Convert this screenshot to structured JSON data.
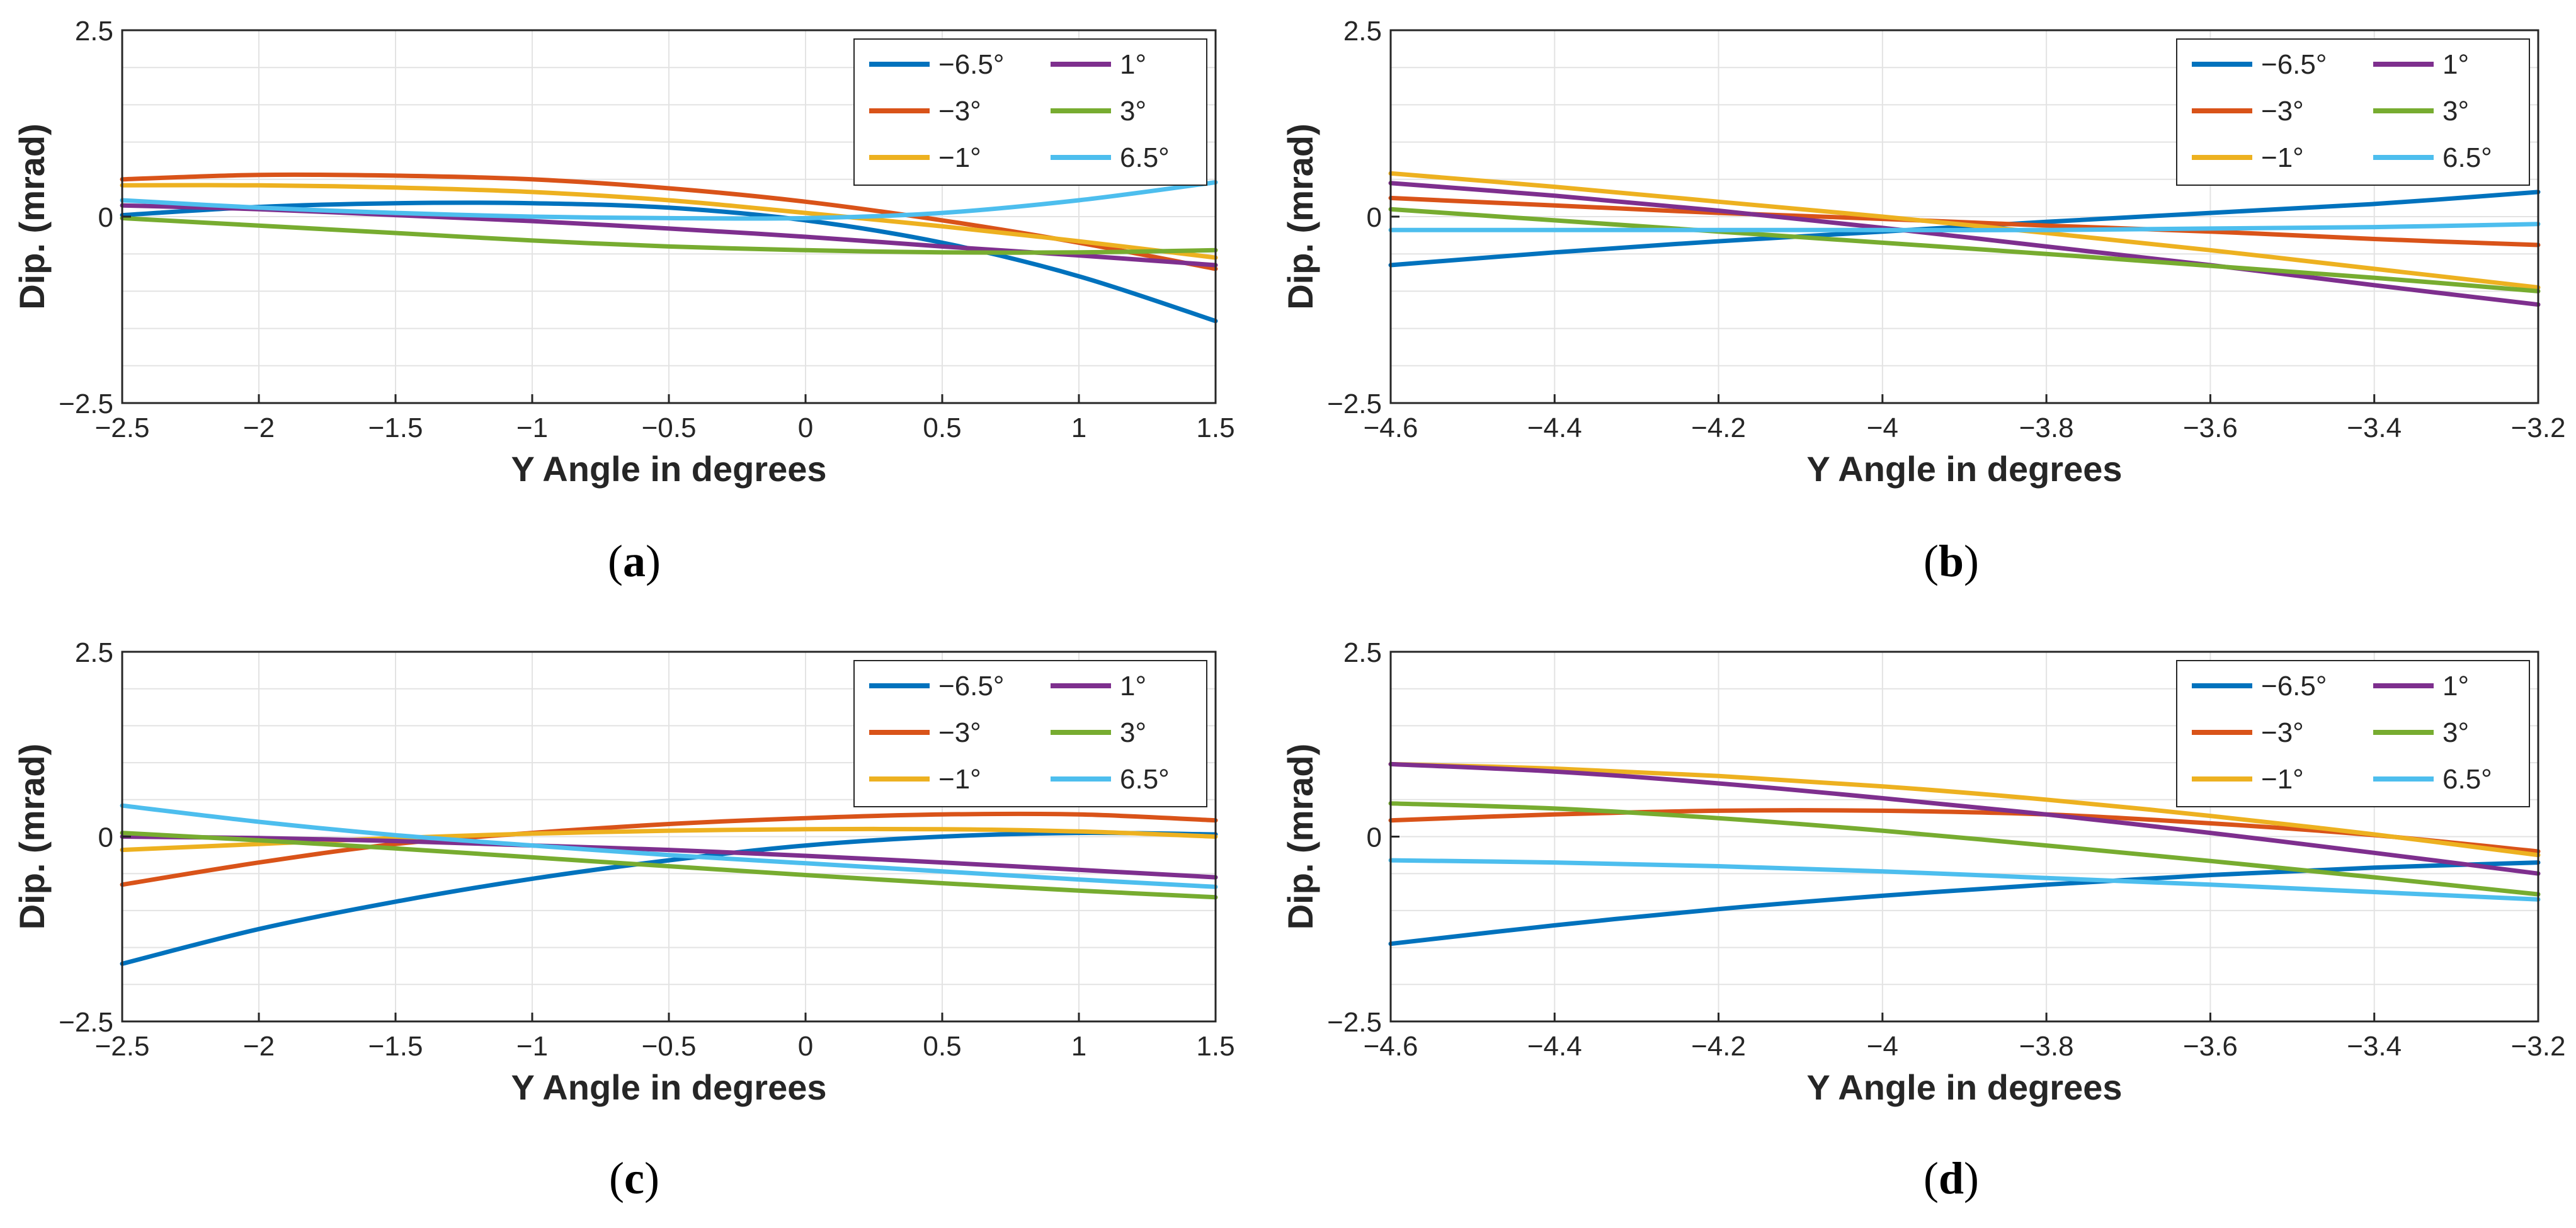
{
  "colors": {
    "-6.5°": "#0072BD",
    "-3°": "#D95319",
    "-1°": "#EDB120",
    "1°": "#7E2F8E",
    "3°": "#77AC30",
    "6.5°": "#4DBEEE",
    "grid": "#e3e3e3",
    "axis": "#262626"
  },
  "chart_data": [
    {
      "type": "line",
      "caption_letter": "a",
      "xlabel": "Y Angle in degrees",
      "ylabel": "Dip. (mrad)",
      "xlim": [
        -2.5,
        1.5
      ],
      "ylim": [
        -2.5,
        2.5
      ],
      "xticks": [
        -2.5,
        -2,
        -1.5,
        -1,
        -0.5,
        0,
        0.5,
        1,
        1.5
      ],
      "xtick_labels": [
        "−2.5",
        "−2",
        "−1.5",
        "−1",
        "−0.5",
        "0",
        "0.5",
        "1",
        "1.5"
      ],
      "yticks": [
        -2.5,
        0,
        2.5
      ],
      "ytick_labels": [
        "−2.5",
        "0",
        "2.5"
      ],
      "grid": true,
      "legend_position": "top-right",
      "series": [
        {
          "name": "−6.5°",
          "color_key": "-6.5°",
          "x": [
            -2.5,
            -2,
            -1.5,
            -1,
            -0.5,
            0,
            0.5,
            1,
            1.5
          ],
          "y": [
            0.02,
            0.13,
            0.18,
            0.18,
            0.12,
            -0.05,
            -0.35,
            -0.8,
            -1.4
          ]
        },
        {
          "name": "−3°",
          "color_key": "-3°",
          "x": [
            -2.5,
            -2,
            -1.5,
            -1,
            -0.5,
            0,
            0.5,
            1,
            1.5
          ],
          "y": [
            0.5,
            0.56,
            0.55,
            0.5,
            0.38,
            0.2,
            -0.05,
            -0.35,
            -0.7
          ]
        },
        {
          "name": "−1°",
          "color_key": "-1°",
          "x": [
            -2.5,
            -2,
            -1.5,
            -1,
            -0.5,
            0,
            0.5,
            1,
            1.5
          ],
          "y": [
            0.42,
            0.42,
            0.39,
            0.33,
            0.22,
            0.05,
            -0.13,
            -0.33,
            -0.55
          ]
        },
        {
          "name": "1°",
          "color_key": "1°",
          "x": [
            -2.5,
            -2,
            -1.5,
            -1,
            -0.5,
            0,
            0.5,
            1,
            1.5
          ],
          "y": [
            0.15,
            0.1,
            0.02,
            -0.06,
            -0.16,
            -0.27,
            -0.4,
            -0.52,
            -0.65
          ]
        },
        {
          "name": "3°",
          "color_key": "3°",
          "x": [
            -2.5,
            -2,
            -1.5,
            -1,
            -0.5,
            0,
            0.5,
            1,
            1.5
          ],
          "y": [
            -0.02,
            -0.12,
            -0.22,
            -0.32,
            -0.4,
            -0.45,
            -0.48,
            -0.48,
            -0.45
          ]
        },
        {
          "name": "6.5°",
          "color_key": "6.5°",
          "x": [
            -2.5,
            -2,
            -1.5,
            -1,
            -0.5,
            0,
            0.5,
            1,
            1.5
          ],
          "y": [
            0.22,
            0.12,
            0.05,
            0.0,
            -0.02,
            -0.02,
            0.05,
            0.22,
            0.46
          ]
        }
      ]
    },
    {
      "type": "line",
      "caption_letter": "b",
      "xlabel": "Y Angle in degrees",
      "ylabel": "Dip. (mrad)",
      "xlim": [
        -4.6,
        -3.2
      ],
      "ylim": [
        -2.5,
        2.5
      ],
      "xticks": [
        -4.6,
        -4.4,
        -4.2,
        -4,
        -3.8,
        -3.6,
        -3.4,
        -3.2
      ],
      "xtick_labels": [
        "−4.6",
        "−4.4",
        "−4.2",
        "−4",
        "−3.8",
        "−3.6",
        "−3.4",
        "−3.2"
      ],
      "yticks": [
        -2.5,
        0,
        2.5
      ],
      "ytick_labels": [
        "−2.5",
        "0",
        "2.5"
      ],
      "grid": true,
      "legend_position": "top-right",
      "series": [
        {
          "name": "−6.5°",
          "color_key": "-6.5°",
          "x": [
            -4.6,
            -4.4,
            -4.2,
            -4,
            -3.8,
            -3.6,
            -3.4,
            -3.2
          ],
          "y": [
            -0.65,
            -0.48,
            -0.33,
            -0.2,
            -0.07,
            0.05,
            0.17,
            0.33
          ]
        },
        {
          "name": "−3°",
          "color_key": "-3°",
          "x": [
            -4.6,
            -4.4,
            -4.2,
            -4,
            -3.8,
            -3.6,
            -3.4,
            -3.2
          ],
          "y": [
            0.25,
            0.15,
            0.05,
            -0.03,
            -0.12,
            -0.2,
            -0.3,
            -0.38
          ]
        },
        {
          "name": "−1°",
          "color_key": "-1°",
          "x": [
            -4.6,
            -4.4,
            -4.2,
            -4,
            -3.8,
            -3.6,
            -3.4,
            -3.2
          ],
          "y": [
            0.58,
            0.4,
            0.2,
            0.0,
            -0.22,
            -0.45,
            -0.7,
            -0.95
          ]
        },
        {
          "name": "1°",
          "color_key": "1°",
          "x": [
            -4.6,
            -4.4,
            -4.2,
            -4,
            -3.8,
            -3.6,
            -3.4,
            -3.2
          ],
          "y": [
            0.45,
            0.28,
            0.08,
            -0.15,
            -0.4,
            -0.65,
            -0.92,
            -1.18
          ]
        },
        {
          "name": "3°",
          "color_key": "3°",
          "x": [
            -4.6,
            -4.4,
            -4.2,
            -4,
            -3.8,
            -3.6,
            -3.4,
            -3.2
          ],
          "y": [
            0.1,
            -0.05,
            -0.2,
            -0.35,
            -0.5,
            -0.66,
            -0.82,
            -1.0
          ]
        },
        {
          "name": "6.5°",
          "color_key": "6.5°",
          "x": [
            -4.6,
            -4.4,
            -4.2,
            -4,
            -3.8,
            -3.6,
            -3.4,
            -3.2
          ],
          "y": [
            -0.18,
            -0.18,
            -0.18,
            -0.18,
            -0.18,
            -0.16,
            -0.14,
            -0.1
          ]
        }
      ]
    },
    {
      "type": "line",
      "caption_letter": "c",
      "xlabel": "Y Angle in degrees",
      "ylabel": "Dip. (mrad)",
      "xlim": [
        -2.5,
        1.5
      ],
      "ylim": [
        -2.5,
        2.5
      ],
      "xticks": [
        -2.5,
        -2,
        -1.5,
        -1,
        -0.5,
        0,
        0.5,
        1,
        1.5
      ],
      "xtick_labels": [
        "−2.5",
        "−2",
        "−1.5",
        "−1",
        "−0.5",
        "0",
        "0.5",
        "1",
        "1.5"
      ],
      "yticks": [
        -2.5,
        0,
        2.5
      ],
      "ytick_labels": [
        "−2.5",
        "0",
        "2.5"
      ],
      "grid": true,
      "legend_position": "top-right",
      "series": [
        {
          "name": "−6.5°",
          "color_key": "-6.5°",
          "x": [
            -2.5,
            -2,
            -1.5,
            -1,
            -0.5,
            0,
            0.5,
            1,
            1.5
          ],
          "y": [
            -1.72,
            -1.25,
            -0.88,
            -0.57,
            -0.32,
            -0.12,
            0.0,
            0.05,
            0.03
          ]
        },
        {
          "name": "−3°",
          "color_key": "-3°",
          "x": [
            -2.5,
            -2,
            -1.5,
            -1,
            -0.5,
            0,
            0.5,
            1,
            1.5
          ],
          "y": [
            -0.65,
            -0.35,
            -0.1,
            0.05,
            0.17,
            0.25,
            0.3,
            0.3,
            0.22
          ]
        },
        {
          "name": "−1°",
          "color_key": "-1°",
          "x": [
            -2.5,
            -2,
            -1.5,
            -1,
            -0.5,
            0,
            0.5,
            1,
            1.5
          ],
          "y": [
            -0.18,
            -0.1,
            -0.02,
            0.04,
            0.08,
            0.1,
            0.1,
            0.07,
            0.0
          ]
        },
        {
          "name": "1°",
          "color_key": "1°",
          "x": [
            -2.5,
            -2,
            -1.5,
            -1,
            -0.5,
            0,
            0.5,
            1,
            1.5
          ],
          "y": [
            0.0,
            -0.02,
            -0.06,
            -0.12,
            -0.18,
            -0.26,
            -0.35,
            -0.45,
            -0.55
          ]
        },
        {
          "name": "3°",
          "color_key": "3°",
          "x": [
            -2.5,
            -2,
            -1.5,
            -1,
            -0.5,
            0,
            0.5,
            1,
            1.5
          ],
          "y": [
            0.05,
            -0.05,
            -0.16,
            -0.28,
            -0.4,
            -0.52,
            -0.63,
            -0.73,
            -0.82
          ]
        },
        {
          "name": "6.5°",
          "color_key": "6.5°",
          "x": [
            -2.5,
            -2,
            -1.5,
            -1,
            -0.5,
            0,
            0.5,
            1,
            1.5
          ],
          "y": [
            0.42,
            0.2,
            0.02,
            -0.12,
            -0.25,
            -0.36,
            -0.47,
            -0.58,
            -0.68
          ]
        }
      ]
    },
    {
      "type": "line",
      "caption_letter": "d",
      "xlabel": "Y Angle in degrees",
      "ylabel": "Dip. (mrad)",
      "xlim": [
        -4.6,
        -3.2
      ],
      "ylim": [
        -2.5,
        2.5
      ],
      "xticks": [
        -4.6,
        -4.4,
        -4.2,
        -4,
        -3.8,
        -3.6,
        -3.4,
        -3.2
      ],
      "xtick_labels": [
        "−4.6",
        "−4.4",
        "−4.2",
        "−4",
        "−3.8",
        "−3.6",
        "−3.4",
        "−3.2"
      ],
      "yticks": [
        -2.5,
        0,
        2.5
      ],
      "ytick_labels": [
        "−2.5",
        "0",
        "2.5"
      ],
      "grid": true,
      "legend_position": "top-right",
      "series": [
        {
          "name": "−6.5°",
          "color_key": "-6.5°",
          "x": [
            -4.6,
            -4.4,
            -4.2,
            -4,
            -3.8,
            -3.6,
            -3.4,
            -3.2
          ],
          "y": [
            -1.45,
            -1.2,
            -0.98,
            -0.8,
            -0.65,
            -0.52,
            -0.42,
            -0.35
          ]
        },
        {
          "name": "−3°",
          "color_key": "-3°",
          "x": [
            -4.6,
            -4.4,
            -4.2,
            -4,
            -3.8,
            -3.6,
            -3.4,
            -3.2
          ],
          "y": [
            0.22,
            0.3,
            0.35,
            0.35,
            0.3,
            0.18,
            0.02,
            -0.2
          ]
        },
        {
          "name": "−1°",
          "color_key": "-1°",
          "x": [
            -4.6,
            -4.4,
            -4.2,
            -4,
            -3.8,
            -3.6,
            -3.4,
            -3.2
          ],
          "y": [
            0.98,
            0.92,
            0.82,
            0.68,
            0.5,
            0.28,
            0.03,
            -0.25
          ]
        },
        {
          "name": "1°",
          "color_key": "1°",
          "x": [
            -4.6,
            -4.4,
            -4.2,
            -4,
            -3.8,
            -3.6,
            -3.4,
            -3.2
          ],
          "y": [
            0.98,
            0.88,
            0.72,
            0.52,
            0.3,
            0.05,
            -0.22,
            -0.5
          ]
        },
        {
          "name": "3°",
          "color_key": "3°",
          "x": [
            -4.6,
            -4.4,
            -4.2,
            -4,
            -3.8,
            -3.6,
            -3.4,
            -3.2
          ],
          "y": [
            0.45,
            0.38,
            0.25,
            0.08,
            -0.12,
            -0.33,
            -0.55,
            -0.78
          ]
        },
        {
          "name": "6.5°",
          "color_key": "6.5°",
          "x": [
            -4.6,
            -4.4,
            -4.2,
            -4,
            -3.8,
            -3.6,
            -3.4,
            -3.2
          ],
          "y": [
            -0.32,
            -0.35,
            -0.4,
            -0.47,
            -0.56,
            -0.65,
            -0.75,
            -0.85
          ]
        }
      ]
    }
  ]
}
